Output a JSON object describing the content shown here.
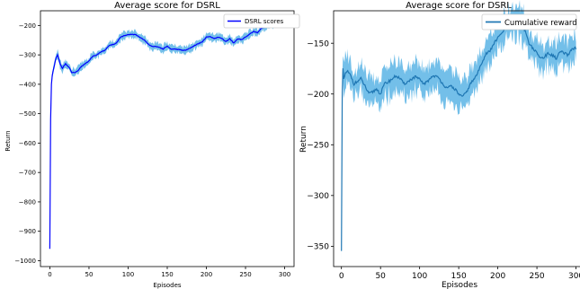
{
  "chart_data": [
    {
      "type": "line",
      "title": "Average score for DSRL",
      "xlabel": "Episodes",
      "ylabel": "Return",
      "xlim": [
        -12,
        312
      ],
      "ylim": [
        -1020,
        -150
      ],
      "xticks": [
        0,
        50,
        100,
        150,
        200,
        250,
        300
      ],
      "yticks": [
        -1000,
        -900,
        -800,
        -700,
        -600,
        -500,
        -400,
        -300,
        -200
      ],
      "legend": {
        "position": "top-right",
        "entries": [
          "DSRL scores"
        ]
      },
      "grid": false,
      "series": [
        {
          "name": "DSRL scores",
          "color": "#0000ff",
          "band_color": "#5ab4e5",
          "band_halfwidth": 12,
          "x": [
            0,
            1,
            2,
            3,
            5,
            8,
            10,
            13,
            16,
            20,
            25,
            28,
            32,
            36,
            40,
            45,
            50,
            55,
            60,
            65,
            70,
            75,
            80,
            85,
            90,
            95,
            100,
            105,
            110,
            115,
            120,
            125,
            130,
            135,
            140,
            145,
            150,
            155,
            160,
            165,
            170,
            175,
            180,
            185,
            190,
            195,
            200,
            205,
            210,
            215,
            220,
            225,
            230,
            235,
            240,
            245,
            250,
            255,
            260,
            265,
            270,
            275,
            280,
            285,
            290,
            295,
            300
          ],
          "y": [
            -960,
            -520,
            -400,
            -370,
            -345,
            -310,
            -300,
            -330,
            -345,
            -330,
            -345,
            -360,
            -360,
            -355,
            -340,
            -330,
            -320,
            -305,
            -300,
            -290,
            -285,
            -270,
            -265,
            -260,
            -240,
            -235,
            -232,
            -230,
            -232,
            -240,
            -248,
            -262,
            -270,
            -272,
            -275,
            -280,
            -270,
            -282,
            -280,
            -282,
            -285,
            -283,
            -275,
            -268,
            -262,
            -255,
            -240,
            -238,
            -245,
            -240,
            -245,
            -255,
            -245,
            -260,
            -245,
            -248,
            -240,
            -230,
            -220,
            -225,
            -210,
            -205,
            -200,
            -195,
            -190,
            -185,
            -183
          ]
        }
      ]
    },
    {
      "type": "line",
      "title": "Average score for DSRL",
      "xlabel": "Episodes",
      "ylabel": "Return",
      "xlim": [
        -10,
        312
      ],
      "ylim": [
        -370,
        -118
      ],
      "xticks": [
        0,
        50,
        100,
        150,
        200,
        250,
        300
      ],
      "yticks": [
        -350,
        -300,
        -250,
        -200,
        -150
      ],
      "legend": {
        "position": "top-right",
        "entries": [
          "Cumulative reward"
        ]
      },
      "grid": false,
      "series": [
        {
          "name": "Cumulative reward",
          "color": "#1f77b4",
          "band_color": "#5ab4e5",
          "band_halfwidth": 14,
          "x": [
            0,
            1,
            2,
            3,
            5,
            8,
            12,
            16,
            20,
            25,
            30,
            35,
            40,
            45,
            50,
            55,
            60,
            65,
            70,
            75,
            80,
            85,
            90,
            95,
            100,
            105,
            110,
            115,
            120,
            125,
            130,
            135,
            140,
            145,
            150,
            155,
            160,
            165,
            170,
            175,
            180,
            185,
            190,
            195,
            200,
            205,
            210,
            215,
            220,
            225,
            230,
            235,
            240,
            245,
            250,
            255,
            260,
            265,
            270,
            275,
            280,
            285,
            290,
            295,
            300
          ],
          "y": [
            -355,
            -200,
            -175,
            -185,
            -180,
            -178,
            -182,
            -190,
            -188,
            -185,
            -192,
            -200,
            -198,
            -195,
            -200,
            -190,
            -188,
            -185,
            -182,
            -185,
            -190,
            -188,
            -185,
            -183,
            -186,
            -190,
            -188,
            -183,
            -182,
            -185,
            -190,
            -195,
            -192,
            -195,
            -200,
            -203,
            -198,
            -190,
            -185,
            -178,
            -168,
            -160,
            -158,
            -150,
            -145,
            -140,
            -135,
            -132,
            -132,
            -128,
            -130,
            -138,
            -150,
            -155,
            -160,
            -165,
            -163,
            -160,
            -162,
            -165,
            -158,
            -160,
            -162,
            -155,
            -155
          ]
        }
      ]
    }
  ]
}
